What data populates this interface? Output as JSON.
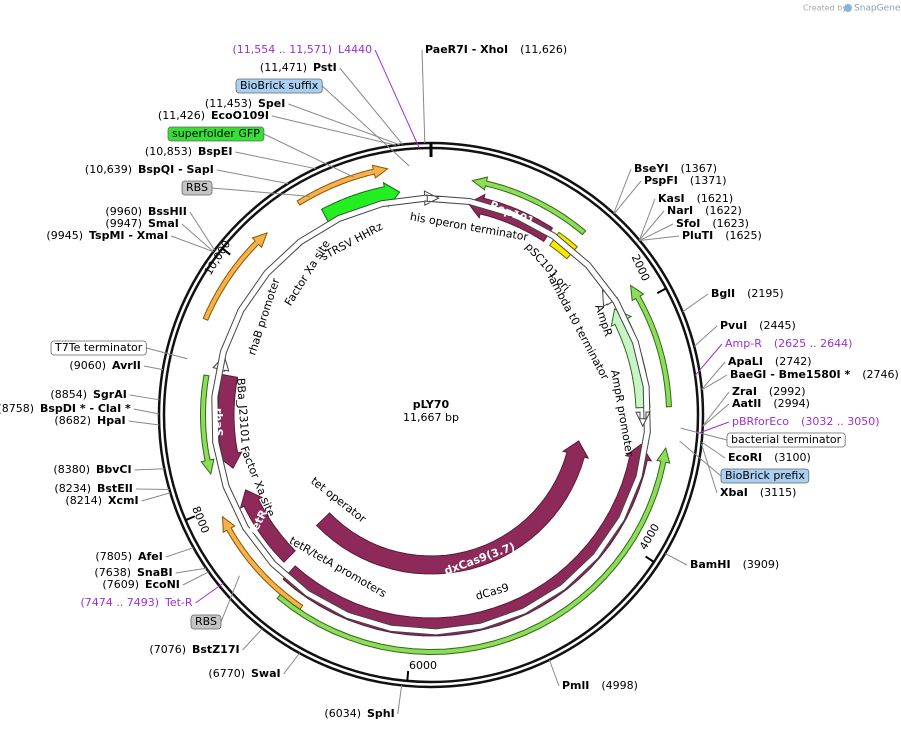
{
  "header": {
    "credit": "Created by",
    "brand": "SnapGene"
  },
  "plasmid": {
    "name": "pLY70",
    "size": "11,667 bp"
  },
  "ticks": [
    "2000",
    "4000",
    "6000",
    "8000",
    "10,000"
  ],
  "sites": [
    {
      "name": "PaeR7I  - XhoI",
      "position": "(11,626)"
    },
    {
      "name": "PstI",
      "position": "(11,471)"
    },
    {
      "name": "SpeI",
      "position": "(11,453)"
    },
    {
      "name": "EcoO109I",
      "position": "(11,426)"
    },
    {
      "name": "BspEI",
      "position": "(10,853)"
    },
    {
      "name": "BspQI  - SapI",
      "position": "(10,639)"
    },
    {
      "name": "BssHII",
      "position": "(9960)"
    },
    {
      "name": "SmaI",
      "position": "(9947)"
    },
    {
      "name": "TspMI  - XmaI",
      "position": "(9945)"
    },
    {
      "name": "AvrII",
      "position": "(9060)"
    },
    {
      "name": "SgrAI",
      "position": "(8854)"
    },
    {
      "name": "BspDI * - ClaI *",
      "position": "(8758)"
    },
    {
      "name": "HpaI",
      "position": "(8682)"
    },
    {
      "name": "BbvCI",
      "position": "(8380)"
    },
    {
      "name": "BstEII",
      "position": "(8234)"
    },
    {
      "name": "XcmI",
      "position": "(8214)"
    },
    {
      "name": "AfeI",
      "position": "(7805)"
    },
    {
      "name": "SnaBI",
      "position": "(7638)"
    },
    {
      "name": "EcoNI",
      "position": "(7609)"
    },
    {
      "name": "BstZ17I",
      "position": "(7076)"
    },
    {
      "name": "SwaI",
      "position": "(6770)"
    },
    {
      "name": "SphI",
      "position": "(6034)"
    },
    {
      "name": "PmlI",
      "position": "(4998)"
    },
    {
      "name": "BamHI",
      "position": "(3909)"
    },
    {
      "name": "XbaI",
      "position": "(3115)"
    },
    {
      "name": "EcoRI",
      "position": "(3100)"
    },
    {
      "name": "AatII",
      "position": "(2994)"
    },
    {
      "name": "ZraI",
      "position": "(2992)"
    },
    {
      "name": "BaeGI  - Bme1580I *",
      "position": "(2746)"
    },
    {
      "name": "ApaLI",
      "position": "(2742)"
    },
    {
      "name": "PvuI",
      "position": "(2445)"
    },
    {
      "name": "BglI",
      "position": "(2195)"
    },
    {
      "name": "PluTI",
      "position": "(1625)"
    },
    {
      "name": "SfoI",
      "position": "(1623)"
    },
    {
      "name": "NarI",
      "position": "(1622)"
    },
    {
      "name": "KasI",
      "position": "(1621)"
    },
    {
      "name": "PspFI",
      "position": "(1371)"
    },
    {
      "name": "BseYI",
      "position": "(1367)"
    }
  ],
  "primers": [
    {
      "name": "L4440",
      "position": "(11,554 .. 11,571)"
    },
    {
      "name": "Amp-R",
      "position": "(2625 .. 2644)"
    },
    {
      "name": "pBRforEco",
      "position": "(3032 .. 3050)"
    },
    {
      "name": "Tet-R",
      "position": "(7474 .. 7493)"
    }
  ],
  "callouts": [
    "BioBrick suffix",
    "superfolder GFP",
    "RBS",
    "T7Te terminator",
    "bacterial terminator",
    "BioBrick prefix",
    "RBS"
  ],
  "features": [
    "his operon terminator",
    "Rep101",
    "pSC101 ori",
    "lambda t0 terminator",
    "AmpR",
    "AmpR promoter",
    "sTRSV HHRz",
    "Factor Xa site",
    "rhaB promoter",
    "BBa_J23101",
    "rhaS",
    "Factor Xa site",
    "TetR",
    "tet operator",
    "tetR/tetA promoters",
    "dxCas9(3.7)",
    "dCas9"
  ]
}
